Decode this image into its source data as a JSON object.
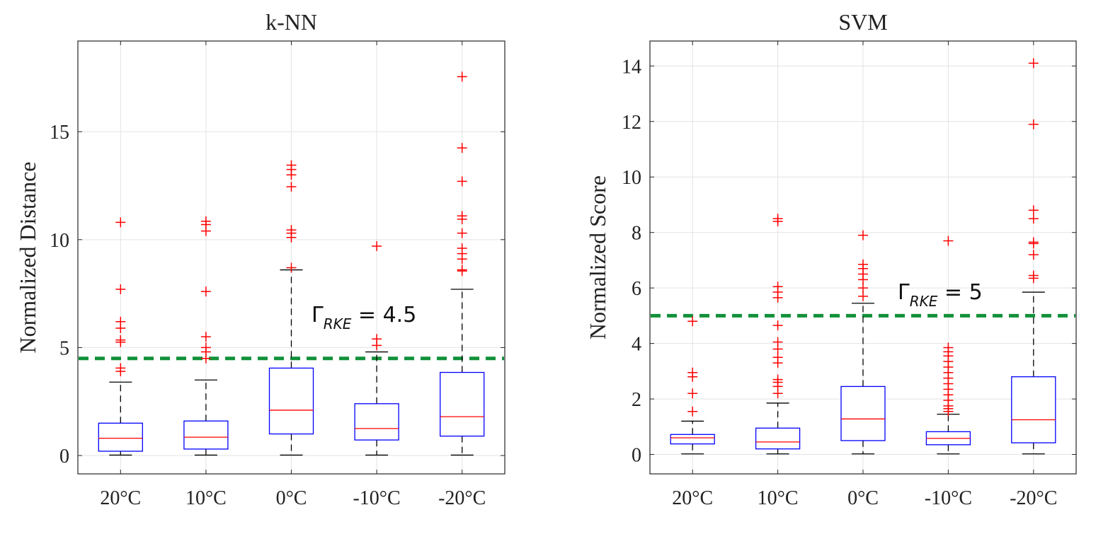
{
  "chart_data": [
    {
      "type": "boxplot",
      "title": "k-NN",
      "xlabel": "",
      "ylabel": "Normalized Distance",
      "categories": [
        "20°C",
        "10°C",
        "0°C",
        "-10°C",
        "-20°C"
      ],
      "ylim": [
        -0.85,
        19.2
      ],
      "yticks": [
        0,
        5,
        10,
        15
      ],
      "grid": true,
      "threshold": {
        "value": 4.5,
        "label_main": "Γ",
        "label_sub": "RKE",
        "label_rest": " = 4.5",
        "color": "#12913a"
      },
      "colors": {
        "box": "#0000ff",
        "median": "#ff0000",
        "whisker": "#000000",
        "outlier": "#ff0000"
      },
      "boxes": [
        {
          "min": 0.02,
          "q1": 0.2,
          "median": 0.8,
          "q3": 1.5,
          "max": 3.4,
          "outliers": [
            3.9,
            4.05,
            5.25,
            5.35,
            5.9,
            6.2,
            7.7,
            10.8
          ]
        },
        {
          "min": 0.02,
          "q1": 0.3,
          "median": 0.85,
          "q3": 1.6,
          "max": 3.5,
          "outliers": [
            4.5,
            4.8,
            5.0,
            5.5,
            7.6,
            10.4,
            10.7,
            10.85
          ]
        },
        {
          "min": 0.02,
          "q1": 1.0,
          "median": 2.1,
          "q3": 4.05,
          "max": 8.6,
          "outliers": [
            8.7,
            10.1,
            10.3,
            10.45,
            12.45,
            13.0,
            13.25,
            13.45
          ]
        },
        {
          "min": 0.02,
          "q1": 0.72,
          "median": 1.25,
          "q3": 2.4,
          "max": 4.8,
          "outliers": [
            5.1,
            5.4,
            9.7
          ]
        },
        {
          "min": 0.02,
          "q1": 0.9,
          "median": 1.8,
          "q3": 3.85,
          "max": 7.7,
          "outliers": [
            8.55,
            8.6,
            9.1,
            9.35,
            9.6,
            10.3,
            10.95,
            11.1,
            12.7,
            14.25,
            17.55
          ]
        }
      ]
    },
    {
      "type": "boxplot",
      "title": "SVM",
      "xlabel": "",
      "ylabel": "Normalized Score",
      "categories": [
        "20°C",
        "10°C",
        "0°C",
        "-10°C",
        "-20°C"
      ],
      "ylim": [
        -0.7,
        14.9
      ],
      "yticks": [
        0,
        2,
        4,
        6,
        8,
        10,
        12,
        14
      ],
      "grid": true,
      "threshold": {
        "value": 5,
        "label_main": "Γ",
        "label_sub": "RKE",
        "label_rest": " = 5",
        "color": "#12913a"
      },
      "colors": {
        "box": "#0000ff",
        "median": "#ff0000",
        "whisker": "#000000",
        "outlier": "#ff0000"
      },
      "boxes": [
        {
          "min": 0.02,
          "q1": 0.38,
          "median": 0.6,
          "q3": 0.72,
          "max": 1.2,
          "outliers": [
            1.55,
            2.2,
            2.8,
            2.95,
            4.8
          ]
        },
        {
          "min": 0.02,
          "q1": 0.2,
          "median": 0.45,
          "q3": 0.95,
          "max": 1.85,
          "outliers": [
            2.2,
            2.45,
            2.6,
            2.7,
            3.3,
            3.5,
            3.8,
            4.05,
            4.65,
            5.65,
            5.85,
            6.05,
            8.4,
            8.5
          ]
        },
        {
          "min": 0.02,
          "q1": 0.5,
          "median": 1.28,
          "q3": 2.45,
          "max": 5.45,
          "outliers": [
            5.7,
            6.0,
            6.3,
            6.5,
            6.7,
            6.85,
            7.9
          ]
        },
        {
          "min": 0.02,
          "q1": 0.35,
          "median": 0.58,
          "q3": 0.82,
          "max": 1.45,
          "outliers": [
            1.55,
            1.65,
            1.75,
            1.95,
            2.15,
            2.35,
            2.55,
            2.75,
            2.95,
            3.15,
            3.35,
            3.55,
            3.7,
            3.85,
            7.7
          ]
        },
        {
          "min": 0.02,
          "q1": 0.42,
          "median": 1.25,
          "q3": 2.8,
          "max": 5.85,
          "outliers": [
            6.35,
            6.45,
            7.2,
            7.6,
            7.65,
            8.5,
            8.8,
            11.9,
            14.1
          ]
        }
      ]
    }
  ]
}
